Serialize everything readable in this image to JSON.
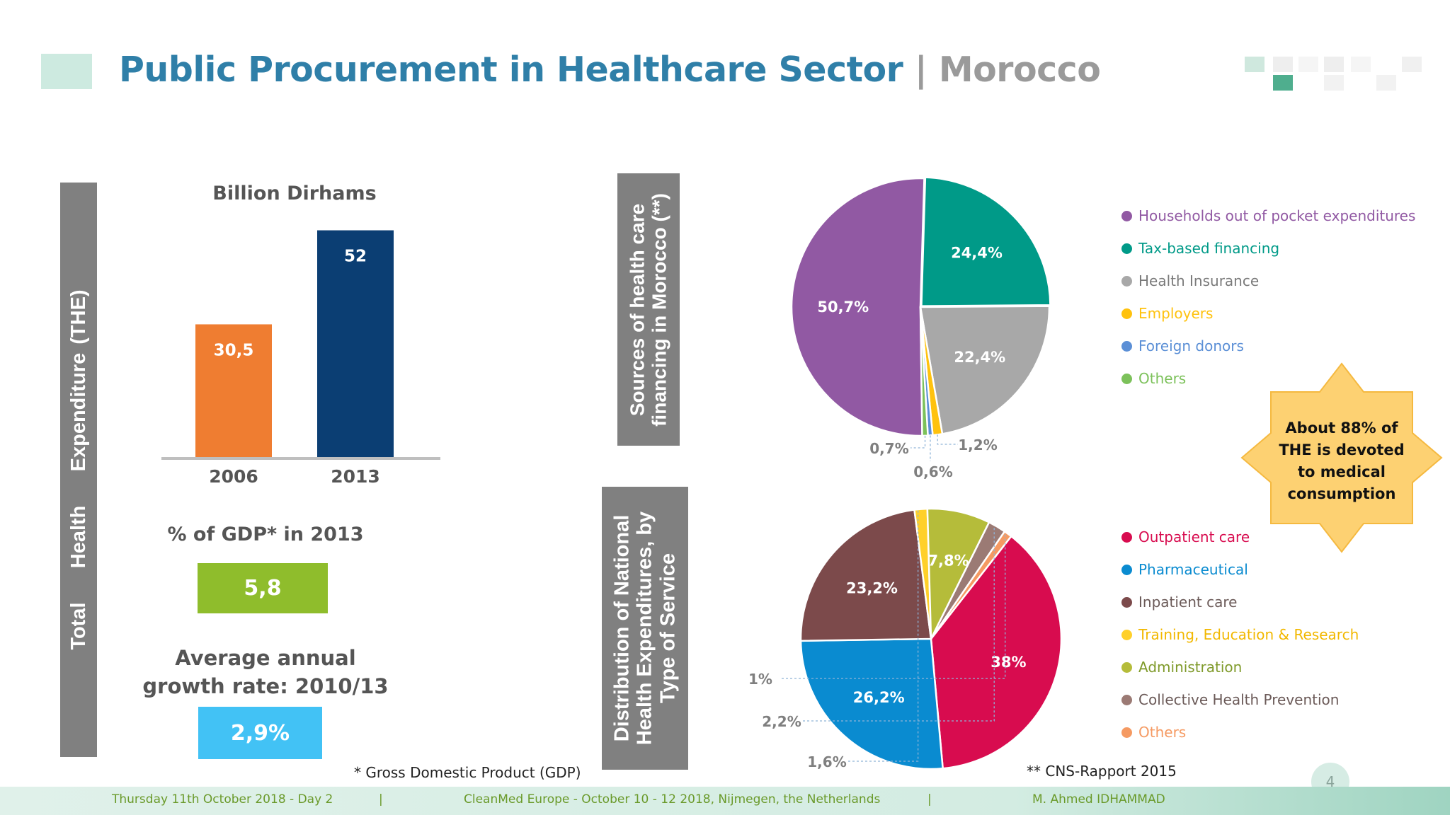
{
  "header": {
    "title": "Public Procurement in Healthcare Sector",
    "separator": "|",
    "country": "Morocco"
  },
  "left_panel": {
    "side_label_part1": "Total",
    "side_label_part2": "Health",
    "side_label_part3": "Expenditure (THE)",
    "gdp_label": "% of GDP* in 2013",
    "gdp_value": "5,8",
    "growth_label_line1": "Average annual",
    "growth_label_line2": "growth rate: 2010/13",
    "growth_value": "2,9%",
    "footnote": "* Gross Domestic Product (GDP)"
  },
  "sources_panel": {
    "side_label_line1": "Sources of health care",
    "side_label_line2": "financing in Morocco (**)"
  },
  "distribution_panel": {
    "side_label_line1": "Distribution of National",
    "side_label_line2": "Health Expenditures, by",
    "side_label_line3": "Type of Service",
    "footnote": "** CNS-Rapport 2015"
  },
  "callout": {
    "line1": "About 88% of",
    "line2": "THE is devoted",
    "line3": "to medical",
    "line4": "consumption"
  },
  "chart_data": [
    {
      "type": "bar",
      "title": "Billion Dirhams",
      "categories": [
        "2006",
        "2013"
      ],
      "values": [
        30.5,
        52
      ],
      "labels": [
        "30,5",
        "52"
      ],
      "colors": [
        "#ef7d31",
        "#0b3e73"
      ],
      "ylim": [
        0,
        55
      ]
    },
    {
      "type": "pie",
      "title": "Sources of health care financing in Morocco (**)",
      "categories": [
        "Households out of pocket expenditures",
        "Tax-based financing",
        "Health Insurance",
        "Employers",
        "Foreign donors",
        "Others"
      ],
      "values": [
        50.7,
        24.4,
        22.4,
        1.2,
        0.6,
        0.7
      ],
      "labels": [
        "50,7%",
        "24,4%",
        "22,4%",
        "1,2%",
        "0,6%",
        "0,7%"
      ],
      "colors": [
        "#9159a3",
        "#009a88",
        "#a8a8a8",
        "#ffc20e",
        "#5b8fd6",
        "#7cc15a"
      ]
    },
    {
      "type": "pie",
      "title": "Distribution of National Health Expenditures, by Type of Service",
      "categories": [
        "Outpatient care",
        "Pharmaceutical",
        "Inpatient care",
        "Training, Education & Research",
        "Administration",
        "Collective Health Prevention",
        "Others"
      ],
      "values": [
        38,
        26.2,
        23.2,
        1.6,
        7.8,
        2.2,
        1
      ],
      "labels": [
        "38%",
        "26,2%",
        "23,2%",
        "1,6%",
        "7,8%",
        "2,2%",
        "1%"
      ],
      "colors": [
        "#d80c4f",
        "#0a8bd0",
        "#7c4a4b",
        "#ffd02a",
        "#b5bc3a",
        "#9b7a74",
        "#f59a62"
      ]
    }
  ],
  "footer": {
    "date": "Thursday 11th October 2018 - Day 2",
    "sep": "|",
    "event": "CleanMed Europe  - October 10 - 12 2018, Nijmegen, the Netherlands",
    "author": "M. Ahmed IDHAMMAD",
    "page": "4"
  }
}
